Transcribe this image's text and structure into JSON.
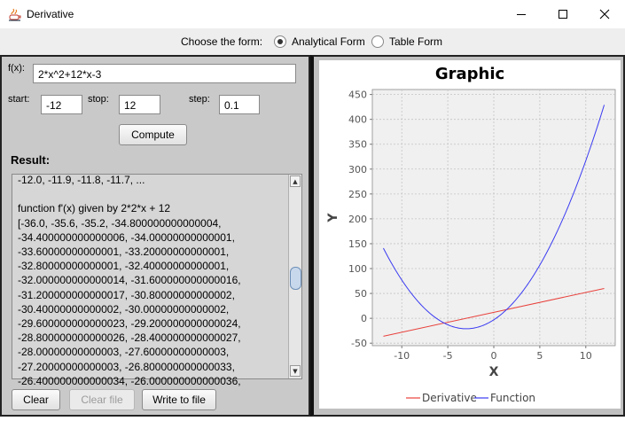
{
  "window": {
    "title": "Derivative"
  },
  "form_selector": {
    "label": "Choose the form:",
    "options": [
      {
        "label": "Analytical Form",
        "selected": true
      },
      {
        "label": "Table Form",
        "selected": false
      }
    ]
  },
  "inputs": {
    "fx_label": "f(x):",
    "fx_value": "2*x^2+12*x-3",
    "start_label": "start:",
    "start_value": "-12",
    "stop_label": "stop:",
    "stop_value": "12",
    "step_label": "step:",
    "step_value": "0.1"
  },
  "buttons": {
    "compute": "Compute",
    "clear": "Clear",
    "clear_file": "Clear file",
    "write_to_file": "Write to file"
  },
  "result": {
    "label": "Result:",
    "lines": [
      "-12.0, -11.9, -11.8, -11.7, ...",
      "",
      "function f'(x) given by 2*2*x + 12",
      "[-36.0, -35.6, -35.2, -34.800000000000004,",
      "-34.400000000000006, -34.00000000000001,",
      "-33.60000000000001, -33.20000000000001,",
      "-32.80000000000001, -32.40000000000001,",
      "-32.000000000000014, -31.600000000000016,",
      "-31.200000000000017, -30.80000000000002,",
      "-30.40000000000002, -30.00000000000002,",
      "-29.600000000000023, -29.200000000000024,",
      "-28.800000000000026, -28.400000000000027,",
      "-28.00000000000003, -27.60000000000003,",
      "-27.20000000000003, -26.800000000000033,",
      "-26.400000000000034, -26.000000000000036,"
    ]
  },
  "chart_data": {
    "type": "line",
    "title": "Graphic",
    "xlabel": "X",
    "ylabel": "Y",
    "xlim": [
      -13.2,
      13.2
    ],
    "ylim": [
      -55,
      460
    ],
    "xticks": [
      -10,
      -5,
      0,
      5,
      10
    ],
    "yticks": [
      -50,
      0,
      50,
      100,
      150,
      200,
      250,
      300,
      350,
      400,
      450
    ],
    "grid": true,
    "legend_position": "bottom",
    "series": [
      {
        "name": "Derivative",
        "color": "#e8413c",
        "x": [
          -12,
          12
        ],
        "y": [
          -36,
          60
        ]
      },
      {
        "name": "Function",
        "color": "#3b3bf2",
        "formula": "2*x^2+12*x-3",
        "x": [
          -12,
          -10,
          -8,
          -6,
          -4,
          -3,
          -2,
          0,
          2,
          4,
          6,
          8,
          10,
          12
        ],
        "y": [
          141,
          77,
          29,
          -3,
          -19,
          -21,
          -19,
          -3,
          29,
          77,
          141,
          221,
          317,
          429
        ]
      }
    ]
  }
}
